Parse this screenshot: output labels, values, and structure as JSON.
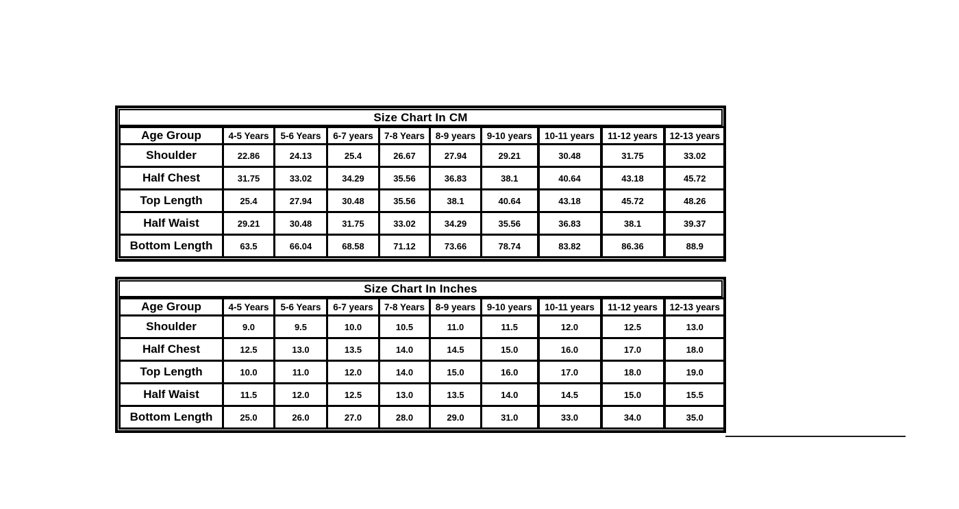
{
  "colors": {
    "background": "#ffffff",
    "table_border": "#000000",
    "text": "#000000",
    "stray_line": "#1c1c1c"
  },
  "chart_data": [
    {
      "type": "table",
      "title": "Size Chart In CM",
      "columns": [
        "Age Group",
        "4-5 Years",
        "5-6 Years",
        "6-7 years",
        "7-8 Years",
        "8-9 years",
        "9-10 years",
        "10-11 years",
        "11-12 years",
        "12-13 years"
      ],
      "rows": [
        [
          "Shoulder",
          "22.86",
          "24.13",
          "25.4",
          "26.67",
          "27.94",
          "29.21",
          "30.48",
          "31.75",
          "33.02"
        ],
        [
          "Half Chest",
          "31.75",
          "33.02",
          "34.29",
          "35.56",
          "36.83",
          "38.1",
          "40.64",
          "43.18",
          "45.72"
        ],
        [
          "Top Length",
          "25.4",
          "27.94",
          "30.48",
          "35.56",
          "38.1",
          "40.64",
          "43.18",
          "45.72",
          "48.26"
        ],
        [
          "Half Waist",
          "29.21",
          "30.48",
          "31.75",
          "33.02",
          "34.29",
          "35.56",
          "36.83",
          "38.1",
          "39.37"
        ],
        [
          "Bottom Length",
          "63.5",
          "66.04",
          "68.58",
          "71.12",
          "73.66",
          "78.74",
          "83.82",
          "86.36",
          "88.9"
        ]
      ]
    },
    {
      "type": "table",
      "title": "Size Chart In Inches",
      "columns": [
        "Age Group",
        "4-5 Years",
        "5-6 Years",
        "6-7 years",
        "7-8 Years",
        "8-9 years",
        "9-10 years",
        "10-11 years",
        "11-12 years",
        "12-13 years"
      ],
      "rows": [
        [
          "Shoulder",
          "9.0",
          "9.5",
          "10.0",
          "10.5",
          "11.0",
          "11.5",
          "12.0",
          "12.5",
          "13.0"
        ],
        [
          "Half Chest",
          "12.5",
          "13.0",
          "13.5",
          "14.0",
          "14.5",
          "15.0",
          "16.0",
          "17.0",
          "18.0"
        ],
        [
          "Top Length",
          "10.0",
          "11.0",
          "12.0",
          "14.0",
          "15.0",
          "16.0",
          "17.0",
          "18.0",
          "19.0"
        ],
        [
          "Half Waist",
          "11.5",
          "12.0",
          "12.5",
          "13.0",
          "13.5",
          "14.0",
          "14.5",
          "15.0",
          "15.5"
        ],
        [
          "Bottom Length",
          "25.0",
          "26.0",
          "27.0",
          "28.0",
          "29.0",
          "31.0",
          "33.0",
          "34.0",
          "35.0"
        ]
      ]
    }
  ]
}
